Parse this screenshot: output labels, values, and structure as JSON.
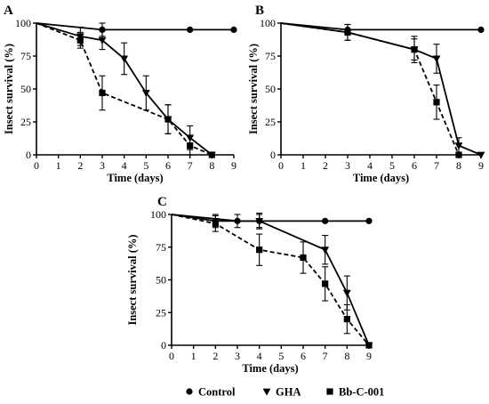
{
  "legend": [
    {
      "series": "Control",
      "marker": "circle"
    },
    {
      "series": "GHA",
      "marker": "triangle-down"
    },
    {
      "series": "Bb-C-001",
      "marker": "square"
    }
  ],
  "chart_data": [
    {
      "panel": "A",
      "type": "line",
      "xlabel": "Time (days)",
      "ylabel": "Insect survival (%)",
      "xlim": [
        0,
        9
      ],
      "ylim": [
        0,
        100
      ],
      "xticks": [
        0,
        1,
        2,
        3,
        4,
        5,
        6,
        7,
        8,
        9
      ],
      "yticks": [
        0,
        25,
        50,
        75,
        100
      ],
      "grid": false,
      "series": [
        {
          "name": "Control",
          "style": "solid",
          "marker": "circle",
          "points": [
            [
              0,
              100
            ],
            [
              3,
              95
            ],
            [
              7,
              95
            ],
            [
              9,
              95
            ]
          ],
          "errors": [
            0,
            5,
            0,
            0
          ]
        },
        {
          "name": "GHA",
          "style": "solid",
          "marker": "triangle-down",
          "points": [
            [
              0,
              100
            ],
            [
              2,
              90
            ],
            [
              3,
              87
            ],
            [
              4,
              73
            ],
            [
              5,
              47
            ],
            [
              6,
              27
            ],
            [
              7,
              13
            ],
            [
              8,
              0
            ]
          ],
          "errors": [
            0,
            7,
            7,
            12,
            13,
            11,
            9,
            0
          ]
        },
        {
          "name": "Bb-C-001",
          "style": "dashed",
          "marker": "square",
          "points": [
            [
              0,
              100
            ],
            [
              2,
              87
            ],
            [
              3,
              47
            ],
            [
              6,
              27
            ],
            [
              7,
              7
            ],
            [
              8,
              0
            ]
          ],
          "errors": [
            0,
            6,
            13,
            11,
            7,
            0
          ]
        }
      ]
    },
    {
      "panel": "B",
      "type": "line",
      "xlabel": "Time (days)",
      "ylabel": "Insect survival (%)",
      "xlim": [
        0,
        9
      ],
      "ylim": [
        0,
        100
      ],
      "xticks": [
        0,
        1,
        2,
        3,
        4,
        5,
        6,
        7,
        8,
        9
      ],
      "yticks": [
        0,
        25,
        50,
        75,
        100
      ],
      "grid": false,
      "series": [
        {
          "name": "Control",
          "style": "solid",
          "marker": "circle",
          "points": [
            [
              0,
              100
            ],
            [
              3,
              95
            ],
            [
              9,
              95
            ]
          ],
          "errors": [
            0,
            0,
            0
          ]
        },
        {
          "name": "GHA",
          "style": "solid",
          "marker": "triangle-down",
          "points": [
            [
              0,
              100
            ],
            [
              3,
              93
            ],
            [
              6,
              80
            ],
            [
              7,
              73
            ],
            [
              8,
              7
            ],
            [
              9,
              0
            ]
          ],
          "errors": [
            0,
            6,
            8,
            11,
            6,
            0
          ]
        },
        {
          "name": "Bb-C-001",
          "style": "dashed",
          "marker": "square",
          "points": [
            [
              0,
              100
            ],
            [
              3,
              93
            ],
            [
              6,
              80
            ],
            [
              7,
              40
            ],
            [
              8,
              0
            ]
          ],
          "errors": [
            0,
            6,
            10,
            13,
            0
          ]
        }
      ]
    },
    {
      "panel": "C",
      "type": "line",
      "xlabel": "Time (days)",
      "ylabel": "Insect survival (%)",
      "xlim": [
        0,
        9
      ],
      "ylim": [
        0,
        100
      ],
      "xticks": [
        0,
        1,
        2,
        3,
        4,
        5,
        6,
        7,
        8,
        9
      ],
      "yticks": [
        0,
        25,
        50,
        75,
        100
      ],
      "grid": false,
      "series": [
        {
          "name": "Control",
          "style": "solid",
          "marker": "circle",
          "points": [
            [
              0,
              100
            ],
            [
              3,
              95
            ],
            [
              4,
              95
            ],
            [
              7,
              95
            ],
            [
              9,
              95
            ]
          ],
          "errors": [
            0,
            5,
            5,
            0,
            0
          ]
        },
        {
          "name": "GHA",
          "style": "solid",
          "marker": "triangle-down",
          "points": [
            [
              0,
              100
            ],
            [
              2,
              95
            ],
            [
              4,
              95
            ],
            [
              7,
              73
            ],
            [
              8,
              40
            ],
            [
              9,
              0
            ]
          ],
          "errors": [
            0,
            5,
            6,
            11,
            13,
            0
          ]
        },
        {
          "name": "Bb-C-001",
          "style": "dashed",
          "marker": "square",
          "points": [
            [
              0,
              100
            ],
            [
              2,
              93
            ],
            [
              4,
              73
            ],
            [
              6,
              67
            ],
            [
              7,
              47
            ],
            [
              8,
              20
            ],
            [
              9,
              0
            ]
          ],
          "errors": [
            0,
            6,
            12,
            12,
            13,
            11,
            0
          ]
        }
      ]
    }
  ]
}
